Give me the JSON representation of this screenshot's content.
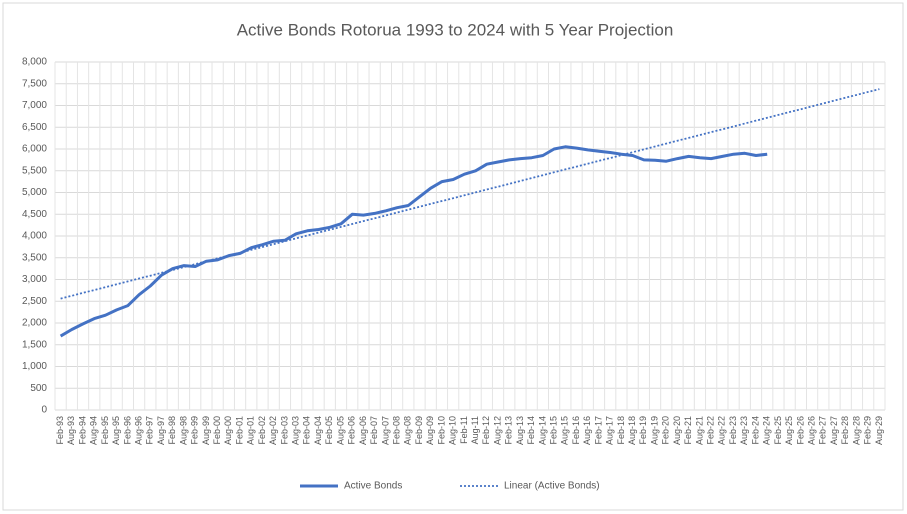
{
  "chart_data": {
    "type": "line",
    "title": "Active Bonds Rotorua 1993 to 2024 with 5 Year Projection",
    "categories": [
      "Feb-93",
      "Aug-93",
      "Feb-94",
      "Aug-94",
      "Feb-95",
      "Aug-95",
      "Feb-96",
      "Aug-96",
      "Feb-97",
      "Aug-97",
      "Feb-98",
      "Aug-98",
      "Feb-99",
      "Aug-99",
      "Feb-00",
      "Aug-00",
      "Feb-01",
      "Aug-01",
      "Feb-02",
      "Aug-02",
      "Feb-03",
      "Aug-03",
      "Feb-04",
      "Aug-04",
      "Feb-05",
      "Aug-05",
      "Feb-06",
      "Aug-06",
      "Feb-07",
      "Aug-07",
      "Feb-08",
      "Aug-08",
      "Feb-09",
      "Aug-09",
      "Feb-10",
      "Aug-10",
      "Feb-11",
      "Aug-11",
      "Feb-12",
      "Aug-12",
      "Feb-13",
      "Aug-13",
      "Feb-14",
      "Aug-14",
      "Feb-15",
      "Aug-15",
      "Feb-16",
      "Aug-16",
      "Feb-17",
      "Aug-17",
      "Feb-18",
      "Aug-18",
      "Feb-19",
      "Aug-19",
      "Feb-20",
      "Aug-20",
      "Feb-21",
      "Aug-21",
      "Feb-22",
      "Aug-22",
      "Feb-23",
      "Aug-23",
      "Feb-24",
      "Aug-24",
      "Feb-25",
      "Aug-25",
      "Feb-26",
      "Aug-26",
      "Feb-27",
      "Aug-27",
      "Feb-28",
      "Aug-28",
      "Feb-29",
      "Aug-29"
    ],
    "series": [
      {
        "name": "Active Bonds",
        "color": "#4472c4",
        "dash": false,
        "values": [
          1700,
          1850,
          1980,
          2100,
          2180,
          2300,
          2400,
          2650,
          2850,
          3100,
          3250,
          3320,
          3300,
          3420,
          3450,
          3550,
          3600,
          3730,
          3800,
          3880,
          3900,
          4050,
          4120,
          4150,
          4200,
          4280,
          4500,
          4480,
          4520,
          4580,
          4650,
          4700,
          4900,
          5100,
          5250,
          5300,
          5420,
          5500,
          5650,
          5700,
          5750,
          5780,
          5800,
          5850,
          6000,
          6050,
          6020,
          5980,
          5950,
          5920,
          5880,
          5850,
          5750,
          5740,
          5720,
          5780,
          5830,
          5800,
          5780,
          5830,
          5880,
          5900,
          5850,
          5880,
          null,
          null,
          null,
          null,
          null,
          null,
          null,
          null,
          null,
          null
        ]
      },
      {
        "name": "Linear (Active Bonds)",
        "color": "#4472c4",
        "dash": true,
        "values": [
          2560,
          2626,
          2692,
          2758,
          2824,
          2890,
          2956,
          3022,
          3088,
          3154,
          3220,
          3286,
          3352,
          3418,
          3484,
          3550,
          3616,
          3682,
          3748,
          3814,
          3880,
          3946,
          4012,
          4078,
          4144,
          4210,
          4276,
          4342,
          4408,
          4474,
          4540,
          4606,
          4672,
          4738,
          4804,
          4870,
          4936,
          5002,
          5068,
          5134,
          5200,
          5266,
          5332,
          5398,
          5464,
          5530,
          5596,
          5662,
          5728,
          5794,
          5860,
          5926,
          5992,
          6058,
          6124,
          6190,
          6256,
          6322,
          6388,
          6454,
          6520,
          6586,
          6652,
          6718,
          6784,
          6850,
          6916,
          6982,
          7048,
          7114,
          7180,
          7246,
          7312,
          7378
        ]
      }
    ],
    "ylim": [
      0,
      8000
    ],
    "yticks": [
      0,
      500,
      {
        "value": 1000,
        "label": "1,000"
      },
      {
        "value": 1500,
        "label": "1,500"
      },
      {
        "value": 2000,
        "label": "2,000"
      },
      {
        "value": 2500,
        "label": "2,500"
      },
      {
        "value": 3000,
        "label": "3,000"
      },
      {
        "value": 3500,
        "label": "3,500"
      },
      {
        "value": 4000,
        "label": "4,000"
      },
      {
        "value": 4500,
        "label": "4,500"
      },
      {
        "value": 5000,
        "label": "5,000"
      },
      {
        "value": 5500,
        "label": "5,500"
      },
      {
        "value": 6000,
        "label": "6,000"
      },
      {
        "value": 6500,
        "label": "6,500"
      },
      {
        "value": 7000,
        "label": "7,000"
      },
      {
        "value": 7500,
        "label": "7,500"
      },
      {
        "value": 8000,
        "label": "8,000"
      }
    ],
    "grid": true,
    "legend": "bottom"
  }
}
